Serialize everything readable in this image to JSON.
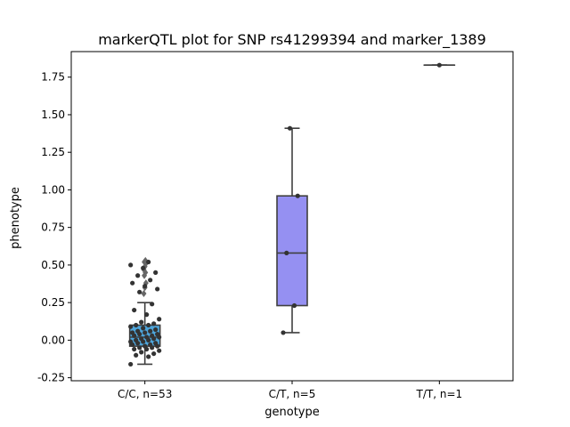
{
  "chart_data": {
    "type": "box",
    "title": "markerQTL plot for SNP rs41299394 and marker_1389",
    "xlabel": "genotype",
    "ylabel": "phenotype",
    "ylim": [
      -0.27,
      1.92
    ],
    "yticks": [
      "-0.25",
      "0.00",
      "0.25",
      "0.50",
      "0.75",
      "1.00",
      "1.25",
      "1.50",
      "1.75"
    ],
    "ytick_values": [
      -0.25,
      0.0,
      0.25,
      0.5,
      0.75,
      1.0,
      1.25,
      1.5,
      1.75
    ],
    "categories": [
      "C/C, n=53",
      "C/T, n=5",
      "T/T, n=1"
    ],
    "groups": [
      {
        "label": "C/C, n=53",
        "color": "#4ea6dc",
        "box": {
          "whisker_low": -0.16,
          "q1": -0.04,
          "median": 0.02,
          "q3": 0.1,
          "whisker_high": 0.25
        },
        "outliers": [
          0.31,
          0.35,
          0.38,
          0.43,
          0.45,
          0.47,
          0.49,
          0.51,
          0.52,
          0.53
        ],
        "points": [
          -0.16,
          -0.11,
          -0.1,
          -0.09,
          -0.08,
          -0.07,
          -0.06,
          -0.06,
          -0.05,
          -0.05,
          -0.04,
          -0.04,
          -0.03,
          -0.03,
          -0.02,
          -0.02,
          -0.01,
          -0.01,
          0.0,
          0.0,
          0.01,
          0.01,
          0.02,
          0.02,
          0.03,
          0.03,
          0.04,
          0.04,
          0.05,
          0.05,
          0.06,
          0.06,
          0.07,
          0.08,
          0.09,
          0.1,
          0.1,
          0.11,
          0.12,
          0.14,
          0.17,
          0.2,
          0.24,
          0.32,
          0.34,
          0.36,
          0.38,
          0.4,
          0.43,
          0.45,
          0.48,
          0.5,
          0.52
        ]
      },
      {
        "label": "C/T, n=5",
        "color": "#9590f2",
        "box": {
          "whisker_low": 0.05,
          "q1": 0.23,
          "median": 0.58,
          "q3": 0.96,
          "whisker_high": 1.41
        },
        "outliers": [],
        "points": [
          0.05,
          0.23,
          0.58,
          0.96,
          1.41
        ]
      },
      {
        "label": "T/T, n=1",
        "color": "#cfb0f0",
        "box": {
          "whisker_low": 1.83,
          "q1": 1.83,
          "median": 1.83,
          "q3": 1.83,
          "whisker_high": 1.83
        },
        "outliers": [],
        "points": [
          1.83
        ]
      }
    ]
  }
}
